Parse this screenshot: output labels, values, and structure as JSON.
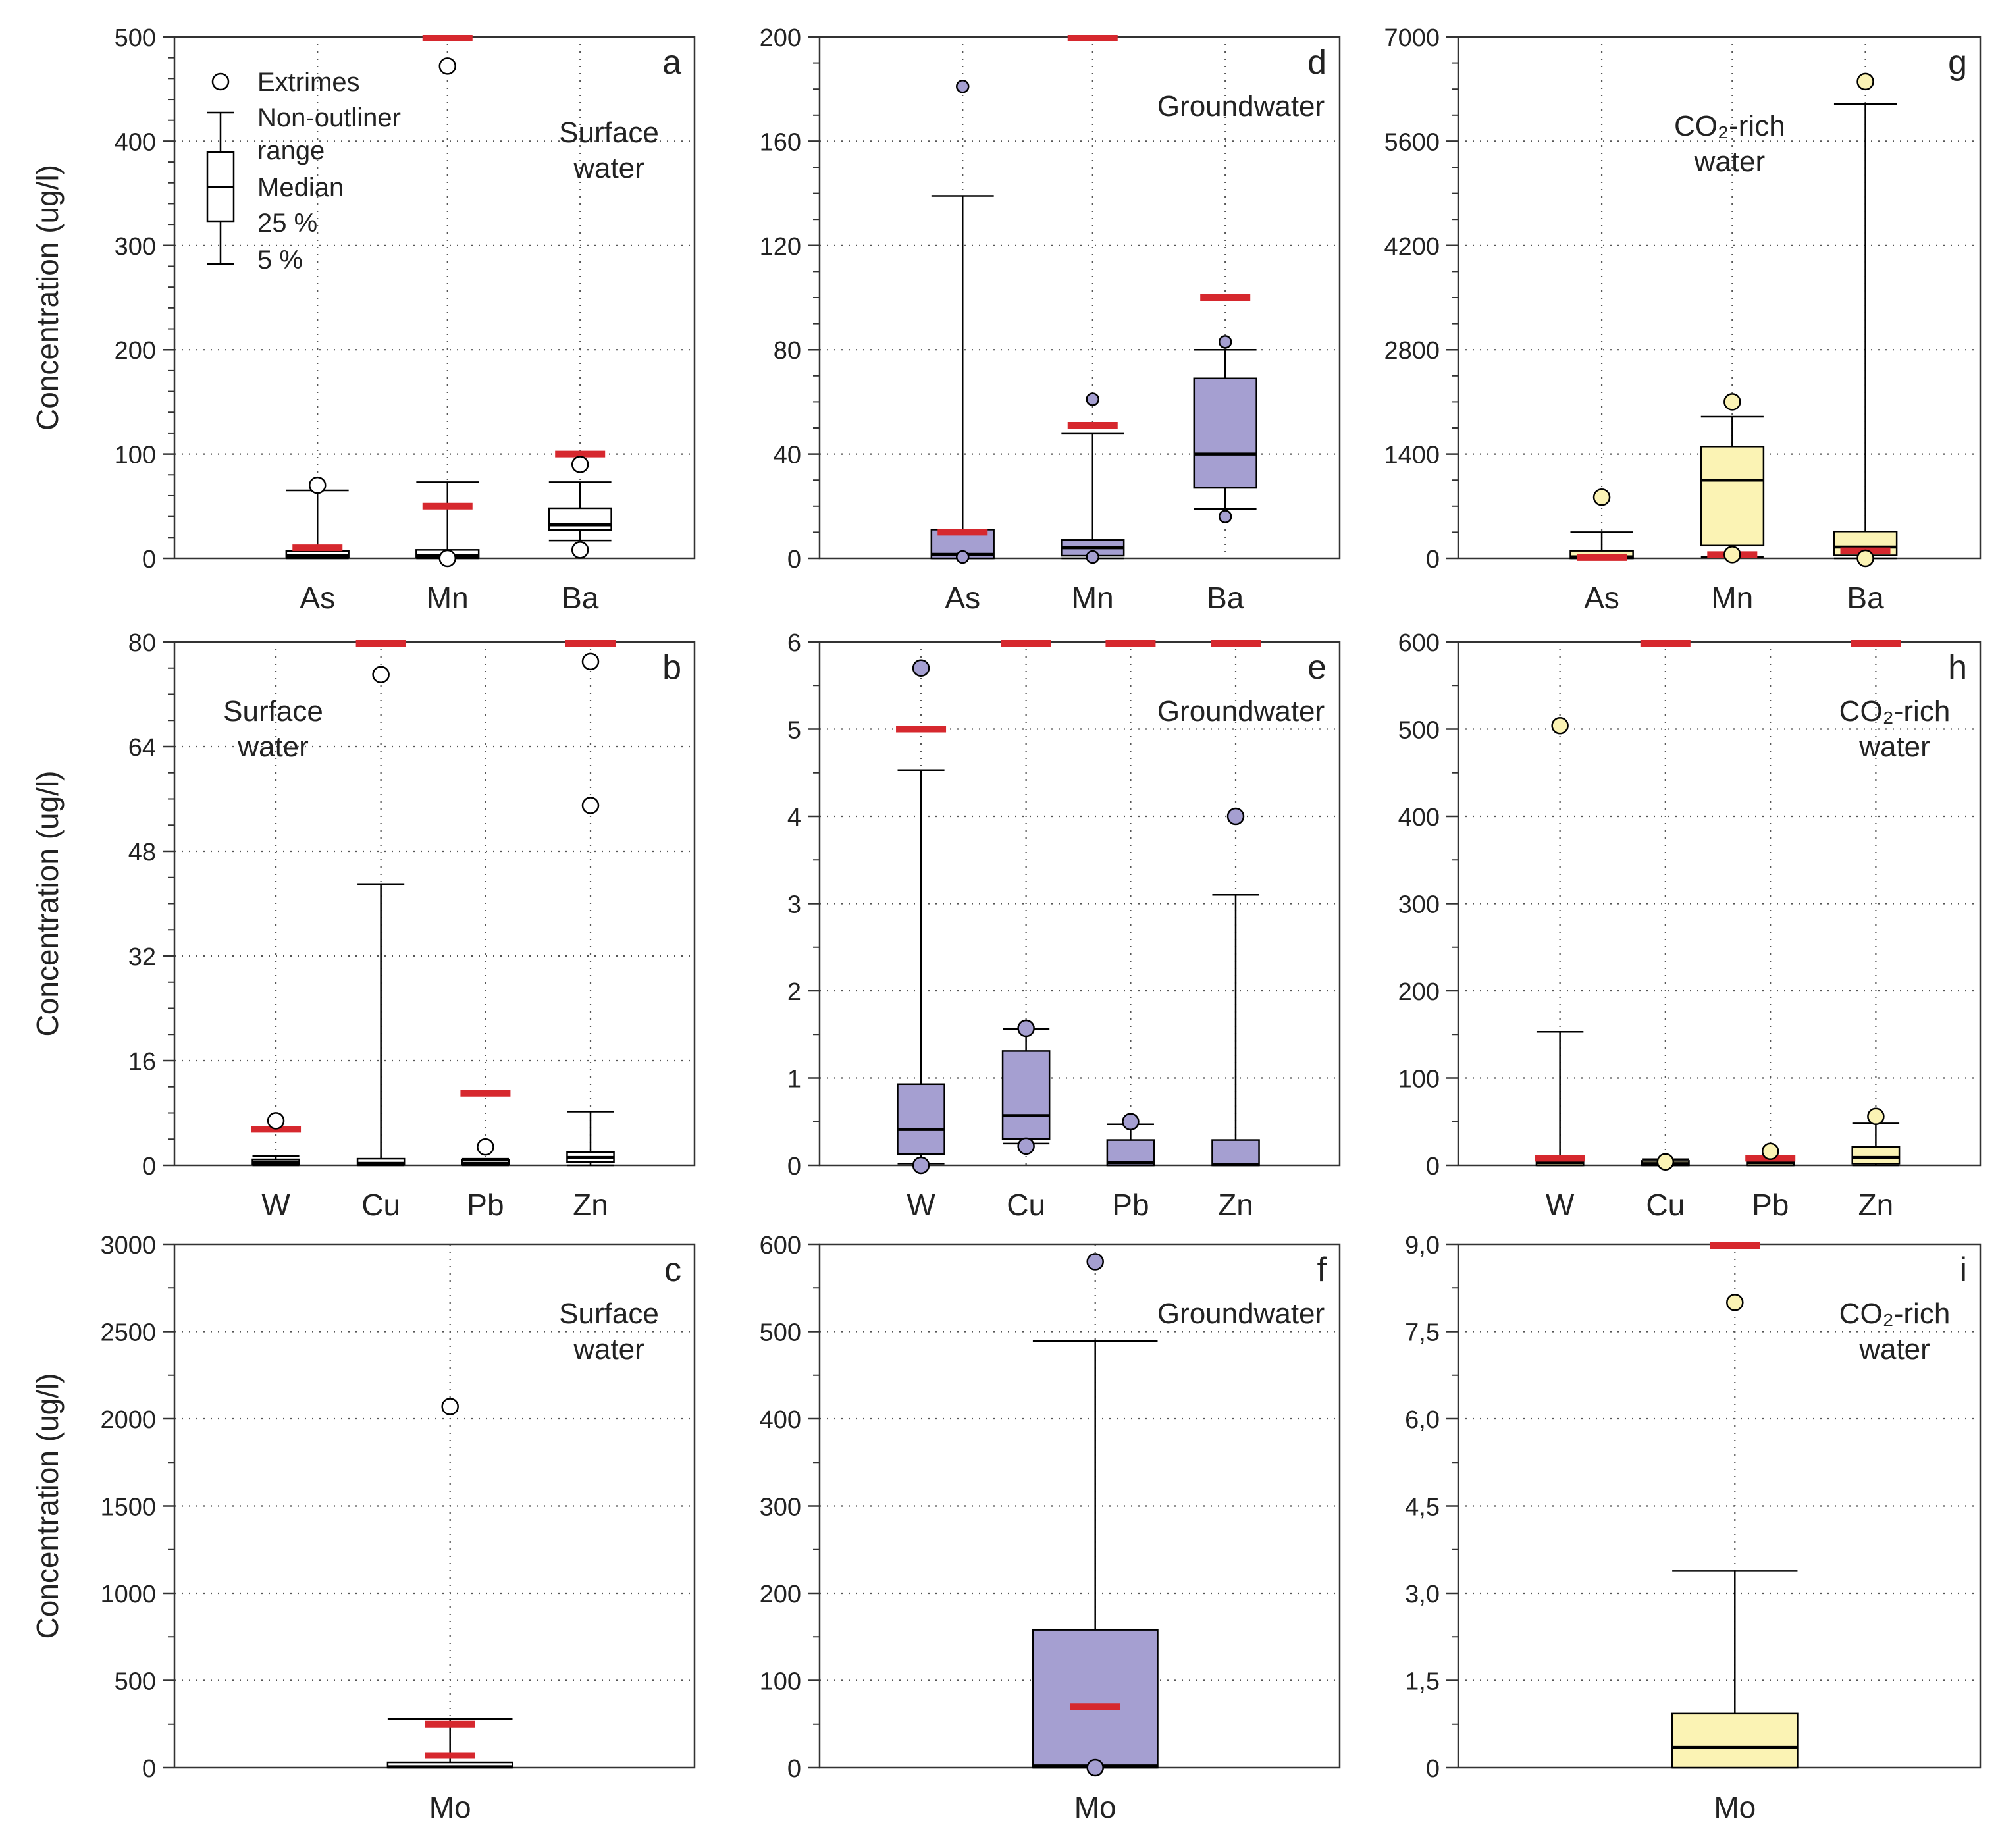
{
  "figure": {
    "ylabel": "Concentration (ug/l)",
    "legend": {
      "extremes": "Extrimes",
      "range_line1": "Non-outliner",
      "range_line2": "range",
      "median": "Median",
      "p25": "25 %",
      "p5": "5 %"
    },
    "colors": {
      "surface_fill": "#ffffff",
      "groundwater_fill": "#a59fd1",
      "co2_fill": "#fbf3b4",
      "limit_line": "#d6282e",
      "axis": "#333333",
      "grid": "#555555"
    }
  },
  "chart_data": [
    {
      "id": "a",
      "type": "box",
      "panel_letter": "a",
      "label_lines": [
        "Surface",
        "water"
      ],
      "fill": "surface",
      "ylim": [
        0,
        500
      ],
      "yticks": [
        0,
        100,
        200,
        300,
        400,
        500
      ],
      "ytick_labels": [
        "0",
        "100",
        "200",
        "300",
        "400",
        "500"
      ],
      "minor_per_major": 5,
      "ylabel": "Concentration (ug/l)",
      "legend": true,
      "label_pos": "right",
      "categories": [
        "As",
        "Mn",
        "Ba"
      ],
      "boxes": [
        {
          "q1": 1,
          "median": 3,
          "q3": 7,
          "whisker_low": 0,
          "whisker_high": 65,
          "outliers": [
            70
          ],
          "limits": [
            10
          ]
        },
        {
          "q1": 1,
          "median": 3,
          "q3": 8,
          "whisker_low": 0,
          "whisker_high": 73,
          "outliers": [
            472,
            0
          ],
          "limits": [
            500,
            50
          ]
        },
        {
          "q1": 27,
          "median": 32,
          "q3": 48,
          "whisker_low": 17,
          "whisker_high": 73,
          "outliers": [
            90,
            8
          ],
          "limits": [
            100
          ]
        }
      ]
    },
    {
      "id": "b",
      "type": "box",
      "panel_letter": "b",
      "label_lines": [
        "Surface",
        "water"
      ],
      "fill": "surface",
      "ylim": [
        0,
        80
      ],
      "yticks": [
        0,
        16,
        32,
        48,
        64,
        80
      ],
      "ytick_labels": [
        "0",
        "16",
        "32",
        "48",
        "64",
        "80"
      ],
      "minor_per_major": 4,
      "ylabel": "Concentration (ug/l)",
      "label_pos": "left",
      "categories": [
        "W",
        "Cu",
        "Pb",
        "Zn"
      ],
      "boxes": [
        {
          "q1": 0.2,
          "median": 0.5,
          "q3": 0.9,
          "whisker_low": 0,
          "whisker_high": 1.4,
          "outliers": [
            6.8
          ],
          "limits": [
            5.5
          ]
        },
        {
          "q1": 0.1,
          "median": 0.3,
          "q3": 1.0,
          "whisker_low": 0,
          "whisker_high": 43,
          "outliers": [
            75
          ],
          "limits": [
            80
          ]
        },
        {
          "q1": 0.1,
          "median": 0.3,
          "q3": 0.8,
          "whisker_low": 0,
          "whisker_high": 1.0,
          "outliers": [
            2.8
          ],
          "limits": [
            11
          ]
        },
        {
          "q1": 0.5,
          "median": 1.2,
          "q3": 2.0,
          "whisker_low": 0,
          "whisker_high": 8.2,
          "outliers": [
            77,
            55
          ],
          "limits": [
            80
          ]
        }
      ]
    },
    {
      "id": "c",
      "type": "box",
      "panel_letter": "c",
      "label_lines": [
        "Surface",
        "water"
      ],
      "fill": "surface",
      "ylim": [
        0,
        3000
      ],
      "yticks": [
        0,
        500,
        1000,
        1500,
        2000,
        2500,
        3000
      ],
      "ytick_labels": [
        "0",
        "500",
        "1000",
        "1500",
        "2000",
        "2500",
        "3000"
      ],
      "minor_per_major": 2,
      "ylabel": "Concentration (ug/l)",
      "label_pos": "right",
      "categories": [
        "Mo"
      ],
      "boxes": [
        {
          "q1": 0,
          "median": 5,
          "q3": 30,
          "whisker_low": 0,
          "whisker_high": 280,
          "outliers": [
            2070
          ],
          "limits": [
            250,
            70
          ]
        }
      ]
    },
    {
      "id": "d",
      "type": "box",
      "panel_letter": "d",
      "label_lines": [
        "Groundwater"
      ],
      "fill": "groundwater",
      "ylim": [
        0,
        200
      ],
      "yticks": [
        0,
        40,
        80,
        120,
        160,
        200
      ],
      "ytick_labels": [
        "0",
        "40",
        "80",
        "120",
        "160",
        "200"
      ],
      "minor_per_major": 4,
      "label_pos": "right",
      "categories": [
        "As",
        "Mn",
        "Ba"
      ],
      "boxes": [
        {
          "q1": 0,
          "median": 1.5,
          "q3": 11,
          "whisker_low": 0,
          "whisker_high": 139,
          "outliers": [
            181,
            0.5
          ],
          "limits": [
            10
          ]
        },
        {
          "q1": 1,
          "median": 4,
          "q3": 7,
          "whisker_low": 0,
          "whisker_high": 48,
          "outliers": [
            61,
            0.5
          ],
          "limits": [
            200,
            51
          ]
        },
        {
          "q1": 27,
          "median": 40,
          "q3": 69,
          "whisker_low": 19,
          "whisker_high": 80,
          "outliers": [
            83,
            16
          ],
          "limits": [
            100
          ]
        }
      ]
    },
    {
      "id": "e",
      "type": "box",
      "panel_letter": "e",
      "label_lines": [
        "Groundwater"
      ],
      "fill": "groundwater",
      "ylim": [
        0,
        6
      ],
      "yticks": [
        0,
        1,
        2,
        3,
        4,
        5,
        6
      ],
      "ytick_labels": [
        "0",
        "1",
        "2",
        "3",
        "4",
        "5",
        "6"
      ],
      "minor_per_major": 2,
      "label_pos": "right",
      "categories": [
        "W",
        "Cu",
        "Pb",
        "Zn"
      ],
      "boxes": [
        {
          "q1": 0.13,
          "median": 0.41,
          "q3": 0.93,
          "whisker_low": 0.02,
          "whisker_high": 4.53,
          "outliers": [
            5.7,
            0
          ],
          "limits": [
            5.0
          ]
        },
        {
          "q1": 0.3,
          "median": 0.57,
          "q3": 1.31,
          "whisker_low": 0.25,
          "whisker_high": 1.56,
          "outliers": [
            1.57,
            0.22
          ],
          "limits": [
            6.0
          ]
        },
        {
          "q1": 0,
          "median": 0.03,
          "q3": 0.29,
          "whisker_low": 0,
          "whisker_high": 0.47,
          "outliers": [
            0.5
          ],
          "limits": [
            6.0
          ]
        },
        {
          "q1": 0,
          "median": 0.01,
          "q3": 0.29,
          "whisker_low": 0,
          "whisker_high": 3.1,
          "outliers": [
            4.0
          ],
          "limits": [
            6.0
          ]
        }
      ]
    },
    {
      "id": "f",
      "type": "box",
      "panel_letter": "f",
      "label_lines": [
        "Groundwater"
      ],
      "fill": "groundwater",
      "ylim": [
        0,
        600
      ],
      "yticks": [
        0,
        100,
        200,
        300,
        400,
        500,
        600
      ],
      "ytick_labels": [
        "0",
        "100",
        "200",
        "300",
        "400",
        "500",
        "600"
      ],
      "minor_per_major": 2,
      "label_pos": "right",
      "categories": [
        "Mo"
      ],
      "boxes": [
        {
          "q1": 0,
          "median": 2,
          "q3": 158,
          "whisker_low": 0,
          "whisker_high": 489,
          "outliers": [
            580,
            0
          ],
          "limits": [
            70
          ]
        }
      ]
    },
    {
      "id": "g",
      "type": "box",
      "panel_letter": "g",
      "label_lines": [
        "CO₂-rich",
        "water"
      ],
      "fill": "co2",
      "ylim": [
        0,
        7000
      ],
      "yticks": [
        0,
        1400,
        2800,
        4200,
        5600,
        7000
      ],
      "ytick_labels": [
        "0",
        "1400",
        "2800",
        "4200",
        "5600",
        "7000"
      ],
      "minor_per_major": 4,
      "label_pos": "center",
      "categories": [
        "As",
        "Mn",
        "Ba"
      ],
      "boxes": [
        {
          "q1": 0,
          "median": 20,
          "q3": 100,
          "whisker_low": 0,
          "whisker_high": 350,
          "outliers": [
            820
          ],
          "limits": [
            10
          ]
        },
        {
          "q1": 170,
          "median": 1050,
          "q3": 1500,
          "whisker_low": 20,
          "whisker_high": 1900,
          "outliers": [
            2100,
            50
          ],
          "limits": [
            50
          ]
        },
        {
          "q1": 40,
          "median": 150,
          "q3": 360,
          "whisker_low": 0,
          "whisker_high": 6100,
          "outliers": [
            6400,
            0
          ],
          "limits": [
            100
          ]
        }
      ]
    },
    {
      "id": "h",
      "type": "box",
      "panel_letter": "h",
      "label_lines": [
        "CO₂-rich",
        "water"
      ],
      "fill": "co2",
      "ylim": [
        0,
        600
      ],
      "yticks": [
        0,
        100,
        200,
        300,
        400,
        500,
        600
      ],
      "ytick_labels": [
        "0",
        "100",
        "200",
        "300",
        "400",
        "500",
        "600"
      ],
      "minor_per_major": 2,
      "label_pos": "right",
      "categories": [
        "W",
        "Cu",
        "Pb",
        "Zn"
      ],
      "boxes": [
        {
          "q1": 0,
          "median": 3,
          "q3": 6,
          "whisker_low": 0,
          "whisker_high": 153,
          "outliers": [
            504
          ],
          "limits": [
            8
          ]
        },
        {
          "q1": 0,
          "median": 2,
          "q3": 5,
          "whisker_low": 0,
          "whisker_high": 7,
          "outliers": [
            4
          ],
          "limits": [
            600
          ]
        },
        {
          "q1": 0,
          "median": 3,
          "q3": 6,
          "whisker_low": 0,
          "whisker_high": 8,
          "outliers": [
            16
          ],
          "limits": [
            8
          ]
        },
        {
          "q1": 2,
          "median": 9,
          "q3": 21,
          "whisker_low": 0,
          "whisker_high": 48,
          "outliers": [
            56
          ],
          "limits": [
            600
          ]
        }
      ]
    },
    {
      "id": "i",
      "type": "box",
      "panel_letter": "i",
      "label_lines": [
        "CO₂-rich",
        "water"
      ],
      "fill": "co2",
      "ylim": [
        0,
        9
      ],
      "yticks": [
        0,
        1.5,
        3,
        4.5,
        6,
        7.5,
        9
      ],
      "ytick_labels": [
        "0",
        "1,5",
        "3,0",
        "4,5",
        "6,0",
        "7,5",
        "9,0"
      ],
      "minor_per_major": 2,
      "label_pos": "right",
      "categories": [
        "Mo"
      ],
      "boxes": [
        {
          "q1": 0,
          "median": 0.35,
          "q3": 0.93,
          "whisker_low": 0,
          "whisker_high": 3.38,
          "outliers": [
            8.0
          ],
          "limits": [
            9.0
          ]
        }
      ]
    }
  ]
}
